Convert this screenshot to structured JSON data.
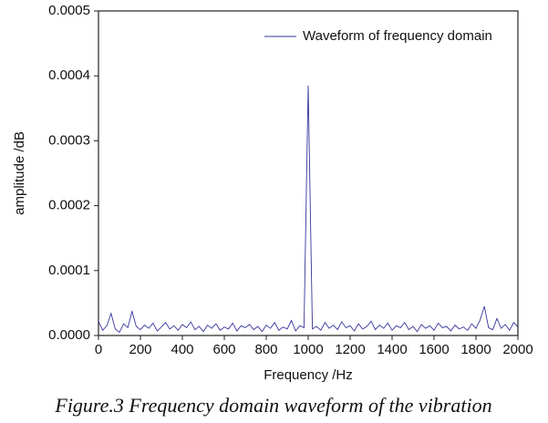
{
  "chart_data": {
    "type": "line",
    "xlabel": "Frequency /Hz",
    "ylabel": "amplitude /dB",
    "x": [
      0,
      20,
      40,
      60,
      80,
      100,
      120,
      140,
      160,
      180,
      200,
      220,
      240,
      260,
      280,
      300,
      320,
      340,
      360,
      380,
      400,
      420,
      440,
      460,
      480,
      500,
      520,
      540,
      560,
      580,
      600,
      620,
      640,
      660,
      680,
      700,
      720,
      740,
      760,
      780,
      800,
      820,
      840,
      860,
      880,
      900,
      920,
      940,
      960,
      980,
      1000,
      1020,
      1040,
      1060,
      1080,
      1100,
      1120,
      1140,
      1160,
      1180,
      1200,
      1220,
      1240,
      1260,
      1280,
      1300,
      1320,
      1340,
      1360,
      1380,
      1400,
      1420,
      1440,
      1460,
      1480,
      1500,
      1520,
      1540,
      1560,
      1580,
      1600,
      1620,
      1640,
      1660,
      1680,
      1700,
      1720,
      1740,
      1760,
      1780,
      1800,
      1820,
      1840,
      1860,
      1880,
      1900,
      1920,
      1940,
      1960,
      1980,
      2000
    ],
    "series": [
      {
        "name": "Waveform of frequency domain",
        "color": "#35359a",
        "values": [
          2.2e-05,
          8e-06,
          1.5e-05,
          3.4e-05,
          1e-05,
          5e-06,
          1.8e-05,
          1.2e-05,
          3.7e-05,
          1.4e-05,
          9e-06,
          1.6e-05,
          1.1e-05,
          1.9e-05,
          7e-06,
          1.3e-05,
          2e-05,
          1e-05,
          1.5e-05,
          8e-06,
          1.7e-05,
          1.2e-05,
          2.1e-05,
          9e-06,
          1.4e-05,
          6e-06,
          1.6e-05,
          1.1e-05,
          1.8e-05,
          8e-06,
          1.3e-05,
          1e-05,
          1.9e-05,
          7e-06,
          1.5e-05,
          1.2e-05,
          1.7e-05,
          9e-06,
          1.4e-05,
          6e-06,
          1.6e-05,
          1.1e-05,
          2e-05,
          8e-06,
          1.3e-05,
          1e-05,
          2.3e-05,
          7e-06,
          1.5e-05,
          1.2e-05,
          0.000385,
          1e-05,
          1.4e-05,
          8e-06,
          2e-05,
          1.1e-05,
          1.6e-05,
          9e-06,
          2.1e-05,
          1.2e-05,
          1.5e-05,
          7e-06,
          1.8e-05,
          1e-05,
          1.4e-05,
          2.2e-05,
          9e-06,
          1.6e-05,
          1.1e-05,
          1.9e-05,
          8e-06,
          1.5e-05,
          1.2e-05,
          2e-05,
          9e-06,
          1.4e-05,
          6e-06,
          1.7e-05,
          1.1e-05,
          1.5e-05,
          8e-06,
          1.9e-05,
          1.2e-05,
          1.4e-05,
          7e-06,
          1.6e-05,
          1e-05,
          1.3e-05,
          8e-06,
          1.8e-05,
          1.1e-05,
          2.4e-05,
          4.5e-05,
          1.2e-05,
          9e-06,
          2.6e-05,
          1.1e-05,
          1.7e-05,
          8e-06,
          2e-05,
          1.3e-05
        ]
      }
    ],
    "xlim": [
      0,
      2000
    ],
    "xticks": [
      0,
      200,
      400,
      600,
      800,
      1000,
      1200,
      1400,
      1600,
      1800,
      2000
    ],
    "ylim": [
      0,
      0.0005
    ],
    "yticks": [
      {
        "value": 0,
        "label": "0.0000"
      },
      0.0001,
      0.0002,
      0.0003,
      0.0004,
      0.0005
    ],
    "legend": "upper right"
  },
  "caption": "Figure.3 Frequency domain waveform of the vibration"
}
